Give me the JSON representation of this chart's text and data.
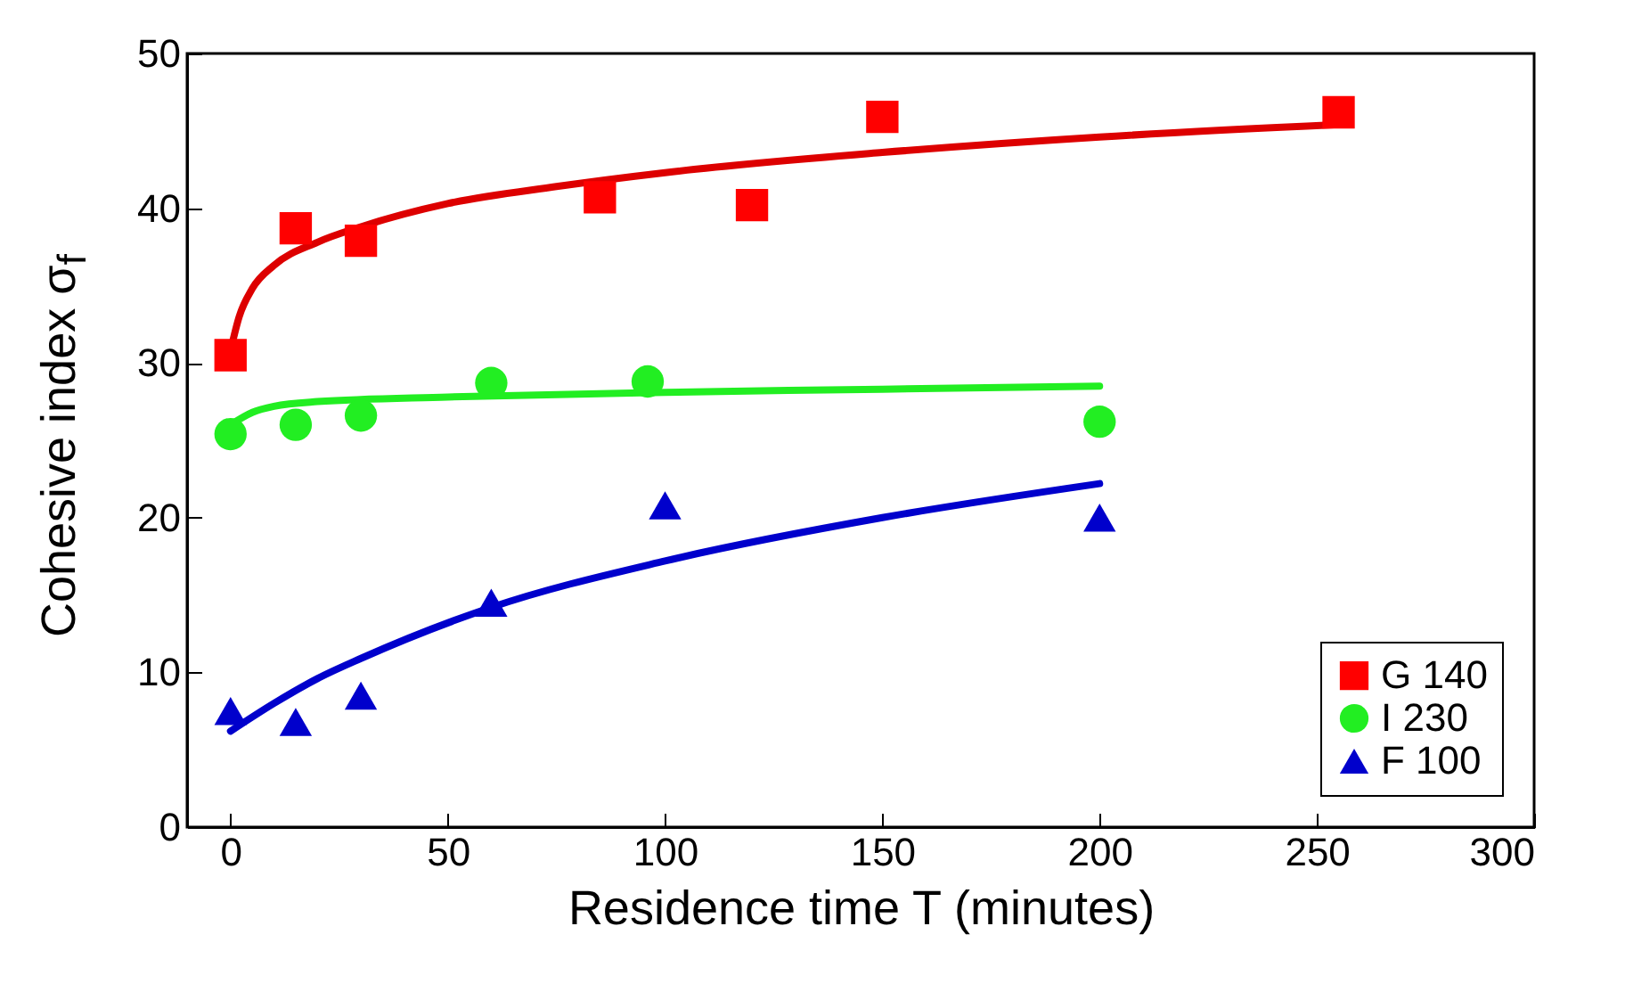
{
  "chart_data": {
    "type": "scatter",
    "xlabel": "Residence time T (minutes)",
    "ylabel": "Cohesive index σ$_{f}$",
    "xlim": [
      -10,
      300
    ],
    "xticks": [
      0,
      50,
      100,
      150,
      200,
      250,
      300
    ],
    "ylim": [
      0,
      50
    ],
    "yticks": [
      0,
      10,
      20,
      30,
      40,
      50
    ],
    "grid": false,
    "legend": "bottom right",
    "series": [
      {
        "type": "line",
        "color": "#dd0000",
        "x": [
          0,
          2,
          5,
          10,
          20,
          30,
          50,
          75,
          100,
          150,
          200,
          255
        ],
        "values": [
          30.8,
          33,
          34.8,
          36.3,
          37.8,
          38.8,
          40.3,
          41.4,
          42.3,
          43.6,
          44.6,
          45.4
        ]
      },
      {
        "type": "line",
        "color": "#22ee22",
        "x": [
          0,
          5,
          10,
          20,
          50,
          100,
          150,
          200
        ],
        "values": [
          26,
          26.8,
          27.2,
          27.5,
          27.8,
          28.1,
          28.3,
          28.5
        ]
      },
      {
        "type": "line",
        "color": "#0000cc",
        "x": [
          0,
          10,
          20,
          30,
          60,
          100,
          150,
          200
        ],
        "values": [
          6.2,
          8,
          9.6,
          10.9,
          14.2,
          17.2,
          20,
          22.2
        ]
      },
      {
        "name": "G 140",
        "marker": "square",
        "color": "#ff0000",
        "x": [
          0,
          15,
          30,
          85,
          120,
          150,
          255
        ],
        "values": [
          30.5,
          38.7,
          37.9,
          40.7,
          40.2,
          45.9,
          46.2
        ]
      },
      {
        "name": "I 230",
        "marker": "circle",
        "color": "#22ee22",
        "x": [
          0,
          15,
          30,
          60,
          96,
          200
        ],
        "values": [
          25.4,
          26,
          26.6,
          28.7,
          28.8,
          26.2
        ]
      },
      {
        "name": "F 100",
        "marker": "triangle",
        "color": "#0000cc",
        "x": [
          0,
          15,
          30,
          60,
          100,
          200
        ],
        "values": [
          7.5,
          6.8,
          8.5,
          14.5,
          20.8,
          20
        ]
      }
    ]
  }
}
